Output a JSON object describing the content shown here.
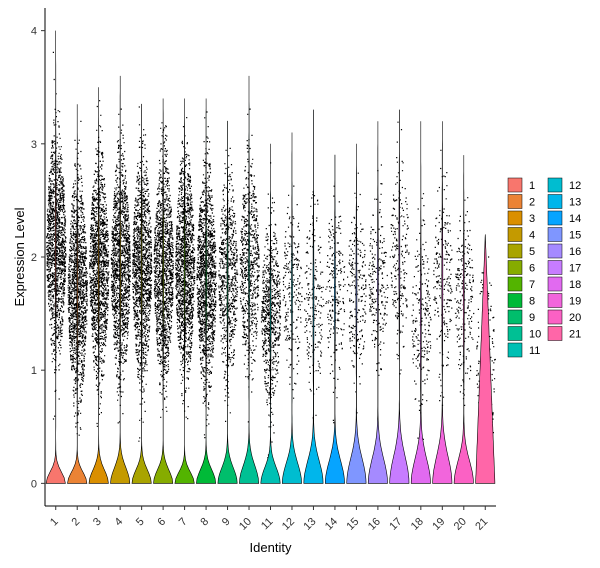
{
  "chart_data": {
    "type": "violin",
    "xlabel": "Identity",
    "ylabel": "Expression Level",
    "ylim": [
      -0.2,
      4.2
    ],
    "yticks": [
      0,
      1,
      2,
      3,
      4
    ],
    "grid": false,
    "legend_position": "right",
    "points_overlay": true,
    "categories": [
      "1",
      "2",
      "3",
      "4",
      "5",
      "6",
      "7",
      "8",
      "9",
      "10",
      "11",
      "12",
      "13",
      "14",
      "15",
      "16",
      "17",
      "18",
      "19",
      "20",
      "21"
    ],
    "colors": [
      "#F8766D",
      "#EB8335",
      "#DA8F00",
      "#C49A00",
      "#A9A400",
      "#86AC00",
      "#53B400",
      "#00BA38",
      "#00BE6C",
      "#00C094",
      "#00C0B4",
      "#00BDD0",
      "#00B6EB",
      "#06A4FF",
      "#7F96FF",
      "#A58AFF",
      "#C77CFF",
      "#E16AF0",
      "#F265DC",
      "#FB61C4",
      "#FF66A8"
    ],
    "series": [
      {
        "name": "1",
        "max": 4.0,
        "zero_spike_height": 0.25,
        "upper_center": 2.1,
        "upper_spread": 0.6
      },
      {
        "name": "2",
        "max": 3.35,
        "zero_spike_height": 0.25,
        "upper_center": 1.7,
        "upper_spread": 0.6
      },
      {
        "name": "3",
        "max": 3.5,
        "zero_spike_height": 0.3,
        "upper_center": 1.9,
        "upper_spread": 0.6
      },
      {
        "name": "4",
        "max": 3.6,
        "zero_spike_height": 0.35,
        "upper_center": 1.9,
        "upper_spread": 0.6
      },
      {
        "name": "5",
        "max": 3.35,
        "zero_spike_height": 0.3,
        "upper_center": 1.9,
        "upper_spread": 0.6
      },
      {
        "name": "6",
        "max": 3.4,
        "zero_spike_height": 0.3,
        "upper_center": 1.9,
        "upper_spread": 0.6
      },
      {
        "name": "7",
        "max": 3.4,
        "zero_spike_height": 0.25,
        "upper_center": 1.9,
        "upper_spread": 0.6
      },
      {
        "name": "8",
        "max": 3.4,
        "zero_spike_height": 0.3,
        "upper_center": 1.8,
        "upper_spread": 0.6
      },
      {
        "name": "9",
        "max": 3.2,
        "zero_spike_height": 0.35,
        "upper_center": 1.8,
        "upper_spread": 0.55
      },
      {
        "name": "10",
        "max": 3.6,
        "zero_spike_height": 0.4,
        "upper_center": 1.9,
        "upper_spread": 0.6
      },
      {
        "name": "11",
        "max": 3.0,
        "zero_spike_height": 0.35,
        "upper_center": 1.5,
        "upper_spread": 0.5
      },
      {
        "name": "12",
        "max": 3.1,
        "zero_spike_height": 0.45,
        "upper_center": 1.7,
        "upper_spread": 0.5
      },
      {
        "name": "13",
        "max": 3.3,
        "zero_spike_height": 0.5,
        "upper_center": 1.6,
        "upper_spread": 0.55
      },
      {
        "name": "14",
        "max": 2.9,
        "zero_spike_height": 0.5,
        "upper_center": 1.7,
        "upper_spread": 0.5
      },
      {
        "name": "15",
        "max": 3.0,
        "zero_spike_height": 0.55,
        "upper_center": 1.7,
        "upper_spread": 0.5
      },
      {
        "name": "16",
        "max": 3.2,
        "zero_spike_height": 0.55,
        "upper_center": 1.8,
        "upper_spread": 0.5
      },
      {
        "name": "17",
        "max": 3.3,
        "zero_spike_height": 0.6,
        "upper_center": 2.0,
        "upper_spread": 0.5
      },
      {
        "name": "18",
        "max": 3.2,
        "zero_spike_height": 0.55,
        "upper_center": 1.4,
        "upper_spread": 0.55
      },
      {
        "name": "19",
        "max": 3.2,
        "zero_spike_height": 0.6,
        "upper_center": 1.8,
        "upper_spread": 0.55
      },
      {
        "name": "20",
        "max": 2.9,
        "zero_spike_height": 0.5,
        "upper_center": 1.6,
        "upper_spread": 0.5
      },
      {
        "name": "21",
        "max": 2.2,
        "zero_spike_height": 2.2,
        "upper_center": 1.0,
        "upper_spread": 0.6
      }
    ]
  }
}
